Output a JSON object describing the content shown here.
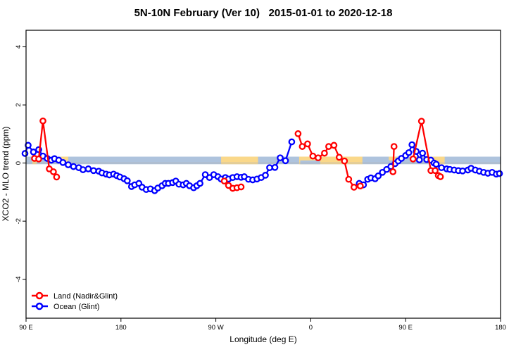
{
  "title": "5N-10N February (Ver 10)   2015-01-01 to 2020-12-18",
  "axes": {
    "x_label": "Longitude (deg E)",
    "y_label": "XCO2 - MLO trend (ppm)"
  },
  "legend": {
    "items": [
      {
        "label": "Land (Nadir&Glint)",
        "color": "#ff0000"
      },
      {
        "label": "Ocean (Glint)",
        "color": "#0000ff"
      }
    ]
  },
  "chart_data": {
    "type": "line",
    "title": "5N-10N February (Ver 10)   2015-01-01 to 2020-12-18",
    "xlabel": "Longitude (deg E)",
    "ylabel": "XCO2 - MLO trend (ppm)",
    "xlim": [
      90,
      540
    ],
    "ylim": [
      -5.34,
      4.57
    ],
    "x_ticks": [
      {
        "pos": 90,
        "label": "90 E"
      },
      {
        "pos": 180,
        "label": "180"
      },
      {
        "pos": 270,
        "label": "90 W"
      },
      {
        "pos": 360,
        "label": "0"
      },
      {
        "pos": 450,
        "label": "90 E"
      },
      {
        "pos": 540,
        "label": "180"
      }
    ],
    "y_ticks": [
      {
        "pos": -4,
        "label": "-4"
      },
      {
        "pos": -2,
        "label": "-2"
      },
      {
        "pos": 0,
        "label": "0"
      },
      {
        "pos": 2,
        "label": "2"
      },
      {
        "pos": 4,
        "label": "4"
      }
    ],
    "grid": false,
    "legend_position": "bottom-left",
    "zero_line_color": "#b3b3b3",
    "ocean_band": {
      "y_from": -0.04,
      "y_to": 0.22,
      "color": "#aec3dd"
    },
    "land_color": "#fad88a",
    "land_patches": [
      {
        "from": 96,
        "to": 100,
        "part": "bottom"
      },
      {
        "from": 123,
        "to": 130,
        "part": "full"
      },
      {
        "from": 275,
        "to": 310,
        "part": "full"
      },
      {
        "from": 349,
        "to": 409,
        "part": "full"
      },
      {
        "from": 434,
        "to": 442,
        "part": "top"
      },
      {
        "from": 457,
        "to": 463,
        "part": "top"
      },
      {
        "from": 475,
        "to": 487,
        "part": "full"
      }
    ],
    "ocean_notches": [
      {
        "from": 350,
        "to": 369
      }
    ],
    "series": [
      {
        "id": "ocean",
        "name": "Ocean (Glint)",
        "color": "#0000ff",
        "marker": "open-circle",
        "segments": [
          [
            [
              89,
              0.33
            ],
            [
              92,
              0.61
            ],
            [
              97,
              0.38
            ],
            [
              102,
              0.46
            ],
            [
              106,
              0.24
            ],
            [
              110,
              0.16
            ],
            [
              114,
              0.1
            ],
            [
              117,
              0.15
            ],
            [
              121,
              0.1
            ],
            [
              125,
              0.02
            ],
            [
              130,
              -0.06
            ],
            [
              135,
              -0.12
            ],
            [
              140,
              -0.16
            ],
            [
              144,
              -0.23
            ],
            [
              149,
              -0.2
            ],
            [
              154,
              -0.26
            ],
            [
              159,
              -0.28
            ],
            [
              162,
              -0.34
            ],
            [
              166,
              -0.38
            ],
            [
              169,
              -0.41
            ],
            [
              173,
              -0.38
            ],
            [
              176,
              -0.43
            ],
            [
              179,
              -0.48
            ],
            [
              183,
              -0.54
            ],
            [
              186,
              -0.61
            ],
            [
              190,
              -0.81
            ],
            [
              193,
              -0.75
            ],
            [
              197,
              -0.7
            ],
            [
              200,
              -0.83
            ],
            [
              204,
              -0.91
            ],
            [
              208,
              -0.89
            ],
            [
              212,
              -0.95
            ],
            [
              215,
              -0.86
            ],
            [
              219,
              -0.78
            ],
            [
              222,
              -0.7
            ],
            [
              225,
              -0.7
            ],
            [
              229,
              -0.67
            ],
            [
              232,
              -0.62
            ],
            [
              235,
              -0.73
            ],
            [
              239,
              -0.75
            ],
            [
              242,
              -0.7
            ],
            [
              245,
              -0.78
            ],
            [
              249,
              -0.85
            ],
            [
              252,
              -0.78
            ],
            [
              255,
              -0.7
            ],
            [
              260,
              -0.4
            ],
            [
              264,
              -0.5
            ],
            [
              268,
              -0.4
            ],
            [
              272,
              -0.47
            ],
            [
              275,
              -0.55
            ],
            [
              279,
              -0.5
            ],
            [
              282,
              -0.55
            ],
            [
              286,
              -0.5
            ],
            [
              290,
              -0.47
            ],
            [
              294,
              -0.49
            ],
            [
              297,
              -0.47
            ],
            [
              301,
              -0.56
            ],
            [
              305,
              -0.58
            ],
            [
              309,
              -0.55
            ],
            [
              313,
              -0.5
            ],
            [
              317,
              -0.42
            ],
            [
              321,
              -0.16
            ],
            [
              326,
              -0.15
            ],
            [
              331,
              0.18
            ],
            [
              336,
              0.08
            ],
            [
              342,
              0.73
            ]
          ],
          [
            [
              406,
              -0.7
            ],
            [
              410,
              -0.75
            ],
            [
              414,
              -0.56
            ],
            [
              417,
              -0.51
            ],
            [
              421,
              -0.54
            ],
            [
              424,
              -0.44
            ],
            [
              428,
              -0.32
            ],
            [
              432,
              -0.22
            ],
            [
              436,
              -0.12
            ],
            [
              440,
              -0.02
            ],
            [
              443,
              0.07
            ],
            [
              446,
              0.16
            ],
            [
              450,
              0.26
            ],
            [
              453,
              0.36
            ],
            [
              456,
              0.63
            ],
            [
              460,
              0.4
            ],
            [
              463,
              0.11
            ],
            [
              466,
              0.34
            ],
            [
              470,
              0.12
            ],
            [
              474,
              0.1
            ],
            [
              477,
              0.0
            ],
            [
              479,
              -0.04
            ],
            [
              484,
              -0.16
            ],
            [
              489,
              -0.2
            ],
            [
              492,
              -0.22
            ],
            [
              496,
              -0.24
            ],
            [
              500,
              -0.26
            ],
            [
              504,
              -0.27
            ],
            [
              509,
              -0.24
            ],
            [
              512,
              -0.18
            ],
            [
              516,
              -0.24
            ],
            [
              520,
              -0.28
            ],
            [
              524,
              -0.32
            ],
            [
              528,
              -0.35
            ],
            [
              532,
              -0.32
            ],
            [
              536,
              -0.38
            ],
            [
              539,
              -0.36
            ]
          ]
        ]
      },
      {
        "id": "land",
        "name": "Land (Nadir&Glint)",
        "color": "#ff0000",
        "marker": "open-circle",
        "segments": [
          [
            [
              98,
              0.16
            ],
            [
              102,
              0.14
            ],
            [
              106,
              1.45
            ],
            [
              112,
              -0.2
            ],
            [
              116,
              -0.3
            ],
            [
              119,
              -0.48
            ]
          ],
          [
            [
              278,
              -0.62
            ],
            [
              282,
              -0.77
            ],
            [
              286,
              -0.87
            ],
            [
              290,
              -0.85
            ],
            [
              294,
              -0.82
            ]
          ],
          [
            [
              348,
              1.01
            ],
            [
              352,
              0.57
            ],
            [
              357,
              0.66
            ],
            [
              362,
              0.24
            ],
            [
              367,
              0.18
            ],
            [
              373,
              0.34
            ],
            [
              377,
              0.57
            ],
            [
              382,
              0.61
            ],
            [
              387,
              0.2
            ],
            [
              392,
              0.07
            ],
            [
              396,
              -0.56
            ],
            [
              401,
              -0.83
            ],
            [
              407,
              -0.79
            ]
          ],
          [
            [
              438,
              -0.3
            ],
            [
              439,
              0.57
            ]
          ],
          [
            [
              457,
              0.14
            ],
            [
              465,
              1.44
            ],
            [
              474,
              -0.26
            ],
            [
              478,
              -0.26
            ],
            [
              481,
              -0.43
            ],
            [
              483,
              -0.47
            ]
          ]
        ]
      }
    ]
  }
}
